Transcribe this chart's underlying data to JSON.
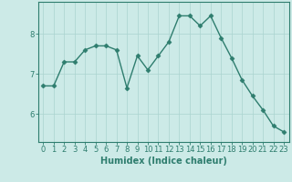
{
  "x": [
    0,
    1,
    2,
    3,
    4,
    5,
    6,
    7,
    8,
    9,
    10,
    11,
    12,
    13,
    14,
    15,
    16,
    17,
    18,
    19,
    20,
    21,
    22,
    23
  ],
  "y": [
    6.7,
    6.7,
    7.3,
    7.3,
    7.6,
    7.7,
    7.7,
    7.6,
    6.65,
    7.45,
    7.1,
    7.45,
    7.8,
    8.45,
    8.45,
    8.2,
    8.45,
    7.9,
    7.4,
    6.85,
    6.45,
    6.1,
    5.7,
    5.55
  ],
  "line_color": "#2e7d6e",
  "marker": "D",
  "markersize": 2.5,
  "linewidth": 1.0,
  "background_color": "#cceae7",
  "grid_color": "#aad4d0",
  "axis_color": "#2e7d6e",
  "xlabel": "Humidex (Indice chaleur)",
  "xlim": [
    -0.5,
    23.5
  ],
  "ylim": [
    5.3,
    8.8
  ],
  "yticks": [
    6,
    7,
    8
  ],
  "xticks": [
    0,
    1,
    2,
    3,
    4,
    5,
    6,
    7,
    8,
    9,
    10,
    11,
    12,
    13,
    14,
    15,
    16,
    17,
    18,
    19,
    20,
    21,
    22,
    23
  ],
  "tick_fontsize": 6,
  "xlabel_fontsize": 7
}
